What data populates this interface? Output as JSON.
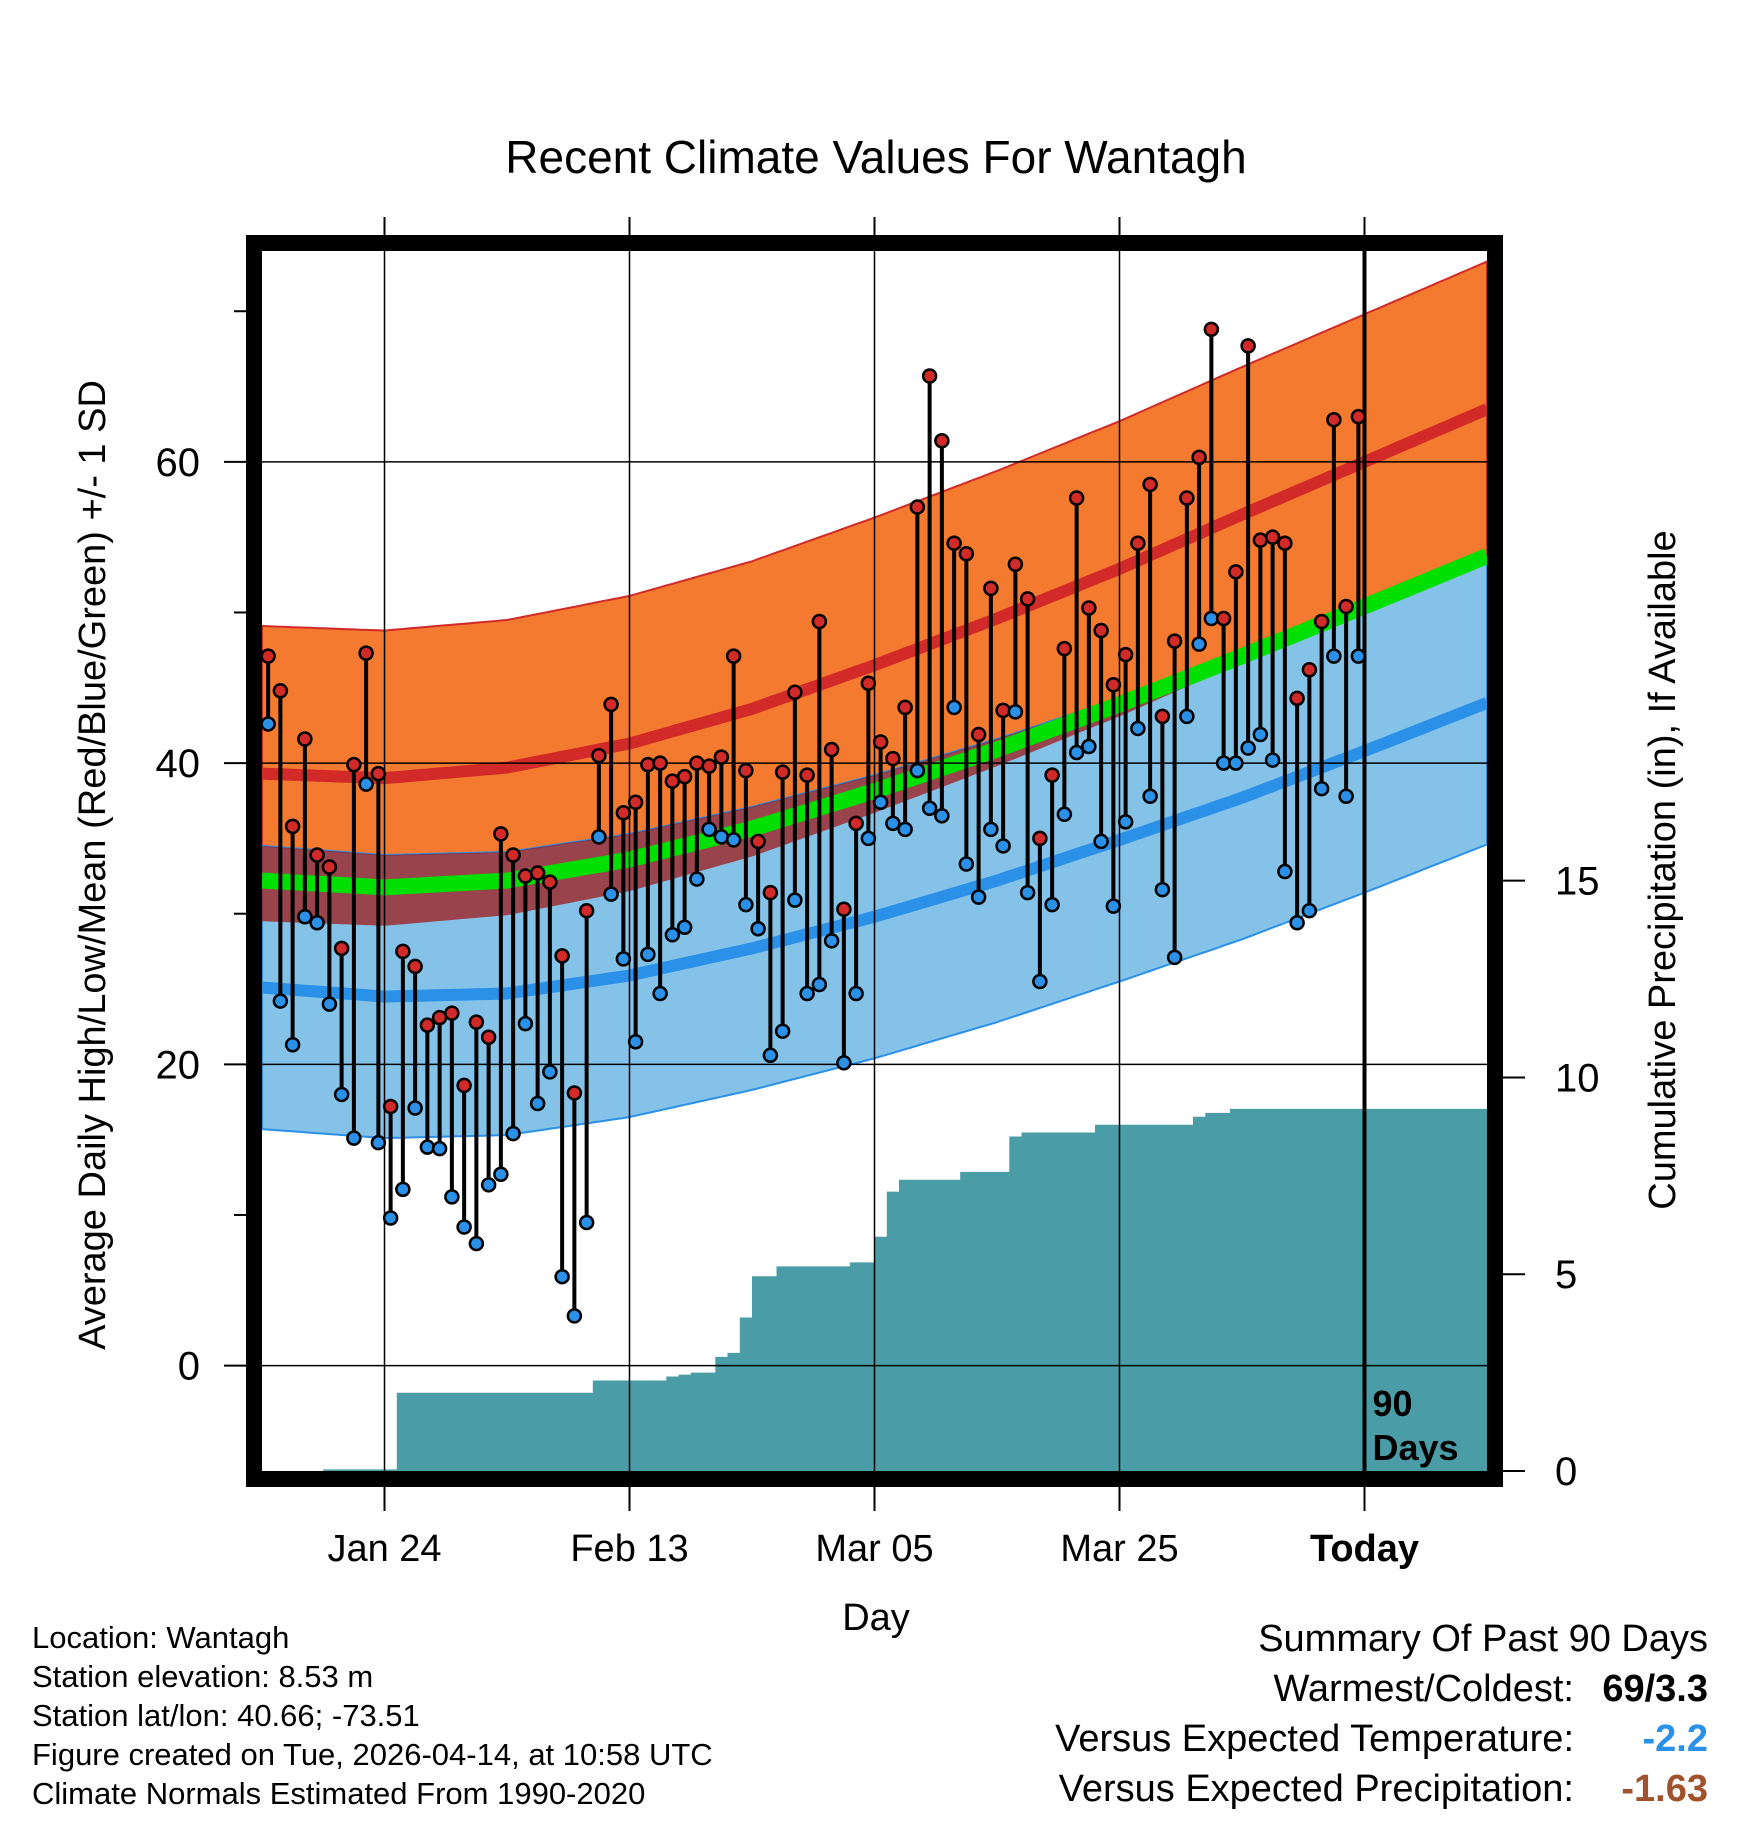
{
  "chart_data": {
    "type": "line",
    "title": "Recent Climate Values For Wantagh",
    "xlabel": "Day",
    "ylabel": "Average Daily High/Low/Mean (Red/Blue/Green) +/- 1 SD",
    "y2label": "Cumulative Precipitation (in), If Available",
    "x_range_days": [
      0,
      100
    ],
    "today_index": 90,
    "ylim": [
      -7,
      74
    ],
    "y2lim": [
      0,
      31
    ],
    "yticks": [
      0,
      20,
      40,
      60
    ],
    "y2ticks": [
      0,
      5,
      10,
      15
    ],
    "xticks": [
      {
        "day": 10,
        "label": "Jan 24"
      },
      {
        "day": 30,
        "label": "Feb 13"
      },
      {
        "day": 50,
        "label": "Mar 05"
      },
      {
        "day": 70,
        "label": "Mar 25"
      },
      {
        "day": 90,
        "label": "Today"
      }
    ],
    "today_marker_label": [
      "90",
      "Days"
    ],
    "colors": {
      "high_band": "#f47a30",
      "high_mean": "#d22a28",
      "low_band": "#85c2e8",
      "low_mean": "#2a90e8",
      "overlap_band": "#a01818",
      "mean_line": "#00e000",
      "high_dot": "#d22a28",
      "low_dot": "#2a90e8",
      "precip": "#4a9ca6",
      "frame": "#000000",
      "warm_value": "#000000",
      "temp_departure": "#2a90e8",
      "precip_departure": "#a0522d"
    },
    "normals": {
      "key_days": [
        0,
        10,
        20,
        30,
        40,
        50,
        60,
        70,
        80,
        90,
        100
      ],
      "high_mean": [
        39.3,
        39.0,
        39.7,
        41.3,
        43.6,
        46.5,
        49.6,
        52.9,
        56.5,
        60.0,
        63.5
      ],
      "low_mean": [
        25.1,
        24.5,
        24.7,
        25.9,
        27.7,
        29.8,
        32.2,
        34.9,
        37.7,
        40.8,
        44.0
      ],
      "sd_high": 9.8,
      "sd_low": 9.4
    },
    "series": [
      {
        "name": "Daily High",
        "values": [
          47.1,
          44.8,
          35.8,
          41.6,
          33.9,
          33.1,
          27.7,
          39.9,
          47.3,
          39.3,
          17.2,
          27.5,
          26.5,
          22.6,
          23.1,
          23.4,
          18.6,
          22.8,
          21.8,
          35.3,
          33.9,
          32.5,
          32.7,
          32.1,
          27.2,
          18.1,
          30.2,
          40.5,
          43.9,
          36.7,
          37.4,
          39.9,
          40.0,
          38.8,
          39.1,
          40.0,
          39.8,
          40.4,
          47.1,
          39.5,
          34.8,
          31.4,
          39.4,
          44.7,
          39.2,
          49.4,
          40.9,
          30.3,
          36.0,
          45.3,
          41.4,
          40.3,
          43.7,
          57.0,
          65.7,
          61.4,
          54.6,
          53.9,
          41.9,
          51.6,
          43.5,
          53.2,
          50.9,
          35.0,
          39.2,
          47.6,
          57.6,
          50.3,
          48.8,
          45.2,
          47.2,
          54.6,
          58.5,
          43.1,
          48.1,
          57.6,
          60.3,
          68.8,
          49.6,
          52.7,
          67.7,
          54.8,
          55.0,
          54.6,
          44.3,
          46.2,
          49.4,
          62.8,
          50.4,
          63.0
        ]
      },
      {
        "name": "Daily Low",
        "values": [
          42.6,
          24.2,
          21.3,
          29.8,
          29.4,
          24.0,
          18.0,
          15.1,
          38.6,
          14.8,
          9.8,
          11.7,
          17.1,
          14.5,
          14.4,
          11.2,
          9.2,
          8.1,
          12.0,
          12.7,
          15.4,
          22.7,
          17.4,
          19.5,
          5.9,
          3.3,
          9.5,
          35.1,
          31.3,
          27.0,
          21.5,
          27.3,
          24.7,
          28.6,
          29.1,
          32.3,
          35.6,
          35.1,
          34.9,
          30.6,
          29.0,
          20.6,
          22.2,
          30.9,
          24.7,
          25.3,
          28.2,
          20.1,
          24.7,
          35.0,
          37.4,
          36.0,
          35.6,
          39.5,
          37.0,
          36.5,
          43.7,
          33.3,
          31.1,
          35.6,
          34.5,
          43.4,
          31.4,
          25.5,
          30.6,
          36.6,
          40.7,
          41.1,
          34.8,
          30.5,
          36.1,
          42.3,
          37.8,
          31.6,
          27.1,
          43.1,
          47.9,
          49.6,
          40.0,
          40.0,
          41.0,
          41.9,
          40.2,
          32.8,
          29.4,
          30.2,
          38.3,
          47.1,
          37.8,
          47.1
        ]
      },
      {
        "name": "Cumulative Precipitation",
        "values": [
          0,
          0,
          0,
          0,
          0,
          0.04,
          0.04,
          0.04,
          0.04,
          0.04,
          0.04,
          1.99,
          1.99,
          1.99,
          1.99,
          1.99,
          1.99,
          1.99,
          1.99,
          1.99,
          1.99,
          1.99,
          1.99,
          1.99,
          1.99,
          1.99,
          1.99,
          2.3,
          2.3,
          2.3,
          2.3,
          2.3,
          2.3,
          2.4,
          2.45,
          2.5,
          2.5,
          2.9,
          3.0,
          3.9,
          4.95,
          4.95,
          5.2,
          5.2,
          5.2,
          5.2,
          5.2,
          5.2,
          5.3,
          5.3,
          5.95,
          7.1,
          7.4,
          7.4,
          7.4,
          7.4,
          7.4,
          7.6,
          7.6,
          7.6,
          7.6,
          8.5,
          8.6,
          8.6,
          8.6,
          8.6,
          8.6,
          8.6,
          8.8,
          8.8,
          8.8,
          8.8,
          8.8,
          8.8,
          8.8,
          8.8,
          9.0,
          9.1,
          9.1,
          9.2,
          9.2,
          9.2,
          9.2,
          9.2,
          9.2,
          9.2,
          9.2,
          9.2,
          9.2,
          9.2,
          9.2
        ]
      }
    ]
  },
  "footer": {
    "location": "Location: Wantagh",
    "elevation": "Station elevation: 8.53 m",
    "latlon": "Station lat/lon: 40.66; -73.51",
    "created": "Figure created on Tue, 2026-04-14, at 10:58 UTC",
    "normals": "Climate Normals Estimated From 1990-2020"
  },
  "summary": {
    "title": "Summary Of Past 90 Days",
    "warm_cold_label": "Warmest/Coldest:",
    "warm_cold_value": "69/3.3",
    "temp_label": "Versus Expected Temperature:",
    "temp_value": "-2.2",
    "precip_label": "Versus Expected Precipitation:",
    "precip_value": "-1.63"
  }
}
